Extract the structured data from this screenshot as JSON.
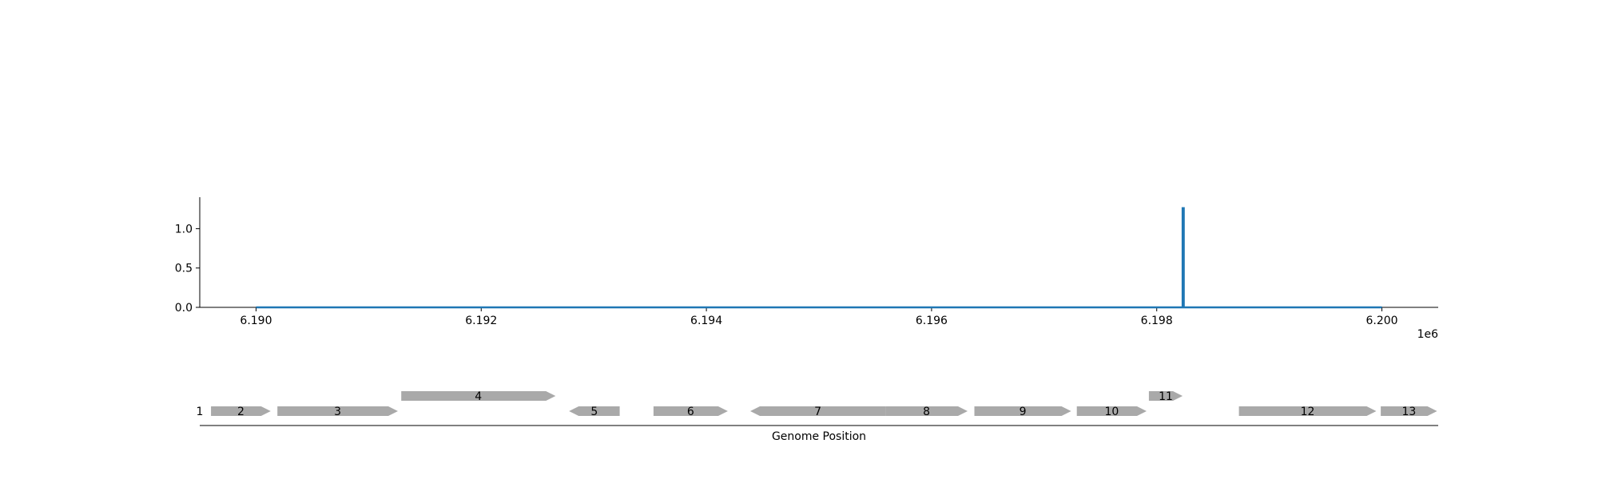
{
  "chart_data": {
    "type": "line",
    "title": "",
    "xlabel": "Genome Position",
    "x_offset_label": "1e6",
    "ylabel": "",
    "xlim": [
      6189500,
      6200500
    ],
    "ylim": [
      0,
      1.4
    ],
    "x_ticks": [
      6190000,
      6192000,
      6194000,
      6196000,
      6198000,
      6200000
    ],
    "x_tick_labels": [
      "6.190",
      "6.192",
      "6.194",
      "6.196",
      "6.198",
      "6.200"
    ],
    "y_ticks": [
      0,
      0.5,
      1.0
    ],
    "y_tick_labels": [
      "0.0",
      "0.5",
      "1.0"
    ],
    "grid": false,
    "series": [
      {
        "color": "#1f77b4",
        "x": [
          6190000,
          6198230,
          6198230,
          6198240,
          6198240,
          6200000
        ],
        "y": [
          0,
          0,
          1.26,
          1.26,
          0,
          0
        ]
      }
    ],
    "genes": [
      {
        "label": "1",
        "start": 6189500,
        "end": 6189500,
        "strand": "+",
        "row": 0
      },
      {
        "label": "2",
        "start": 6189600,
        "end": 6190130,
        "strand": "+",
        "row": 0
      },
      {
        "label": "3",
        "start": 6190190,
        "end": 6191260,
        "strand": "+",
        "row": 0
      },
      {
        "label": "4",
        "start": 6191290,
        "end": 6192660,
        "strand": "+",
        "row": 1
      },
      {
        "label": "5",
        "start": 6192780,
        "end": 6193230,
        "strand": "-",
        "row": 0
      },
      {
        "label": "6",
        "start": 6193530,
        "end": 6194190,
        "strand": "+",
        "row": 0
      },
      {
        "label": "7",
        "start": 6194390,
        "end": 6195590,
        "strand": "-",
        "row": 0
      },
      {
        "label": "8",
        "start": 6195590,
        "end": 6196320,
        "strand": "+",
        "row": 0
      },
      {
        "label": "9",
        "start": 6196380,
        "end": 6197240,
        "strand": "+",
        "row": 0
      },
      {
        "label": "10",
        "start": 6197290,
        "end": 6197910,
        "strand": "+",
        "row": 0
      },
      {
        "label": "11",
        "start": 6197930,
        "end": 6198230,
        "strand": "+",
        "row": 1
      },
      {
        "label": "12",
        "start": 6198730,
        "end": 6199950,
        "strand": "+",
        "row": 0
      },
      {
        "label": "13",
        "start": 6199990,
        "end": 6200490,
        "strand": "+",
        "row": 0
      }
    ],
    "gene_color": "#a9a9a9"
  }
}
